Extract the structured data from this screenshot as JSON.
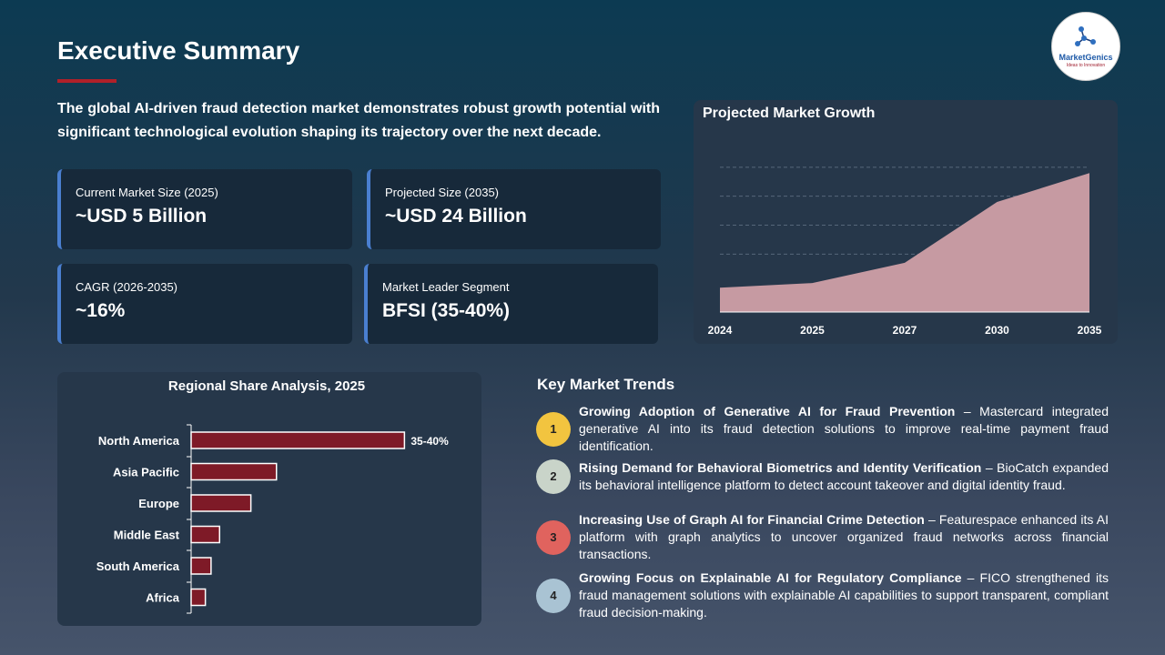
{
  "title": "Executive Summary",
  "logo": {
    "name": "MarketGenics",
    "tagline": "Ideas to Innovation"
  },
  "intro": "The global AI-driven fraud detection market demonstrates robust growth potential with significant technological evolution shaping its trajectory over the next decade.",
  "kpis": [
    {
      "label": "Current Market Size (2025)",
      "value": "~USD 5 Billion"
    },
    {
      "label": "Projected Size (2035)",
      "value": "~USD 24 Billion"
    },
    {
      "label": "CAGR (2026-2035)",
      "value": "~16%"
    },
    {
      "label": "Market Leader Segment",
      "value": "BFSI (35-40%)"
    }
  ],
  "colors": {
    "accent": "#b02029",
    "bar": "#7e1a27",
    "area": "#c69aa2",
    "kpi_border": "#4a7fd0"
  },
  "chart_data": [
    {
      "type": "area",
      "title": "Projected Market Growth",
      "x": [
        "2024",
        "2025",
        "2027",
        "2030",
        "2035"
      ],
      "values": [
        4.2,
        5,
        8.5,
        19,
        24
      ],
      "ylim": [
        0,
        30
      ],
      "grid": true
    },
    {
      "type": "bar",
      "orientation": "horizontal",
      "title": "Regional Share Analysis, 2025",
      "categories": [
        "North America",
        "Asia Pacific",
        "Europe",
        "Middle East",
        "South America",
        "Africa"
      ],
      "values": [
        37.5,
        15,
        10.5,
        5,
        3.5,
        2.5
      ],
      "data_labels": [
        "35-40%",
        "",
        "",
        "",
        "",
        ""
      ],
      "xlim": [
        0,
        44
      ]
    }
  ],
  "trends": {
    "title": "Key Market Trends",
    "items": [
      {
        "num": "1",
        "color": "#f2c43f",
        "head": "Growing Adoption of Generative AI for Fraud Prevention",
        "body": " – Mastercard integrated generative AI into its fraud detection solutions to improve real-time payment fraud identification."
      },
      {
        "num": "2",
        "color": "#c9d4c9",
        "head": "Rising Demand for Behavioral Biometrics and Identity Verification",
        "body": " – BioCatch expanded its behavioral intelligence platform to detect account takeover and digital identity fraud."
      },
      {
        "num": "3",
        "color": "#e0635e",
        "head": "Increasing Use of Graph AI for Financial Crime Detection",
        "body": " – Featurespace enhanced its AI platform with graph analytics to uncover organized fraud networks across financial transactions."
      },
      {
        "num": "4",
        "color": "#a9c3d3",
        "head": "Growing Focus on Explainable AI for Regulatory Compliance",
        "body": " – FICO strengthened its fraud management solutions with explainable AI capabilities to support transparent, compliant fraud decision-making."
      }
    ]
  }
}
